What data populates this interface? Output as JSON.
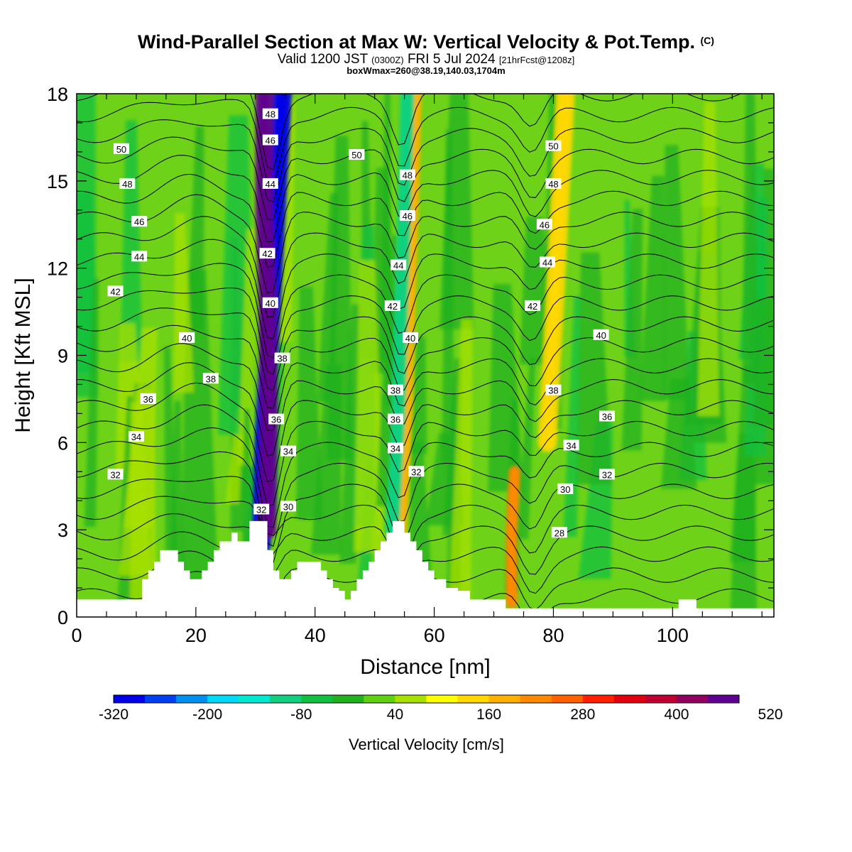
{
  "header": {
    "title": "Wind-Parallel Section at Max W: Vertical Velocity & Pot.Temp.",
    "copyright": "(C)",
    "valid_prefix": "Valid 1200 JST",
    "valid_utc": "(0300Z)",
    "valid_date": "FRI 5 Jul 2024",
    "forecast": "[21hrFcst@1208z]",
    "box_info": "boxWmax=260@38.19,140.03,1704m"
  },
  "chart_data": {
    "type": "heatmap",
    "xlabel": "Distance [nm]",
    "ylabel": "Height [Kft MSL]",
    "xlim": [
      0,
      117
    ],
    "ylim": [
      0,
      18
    ],
    "xticks": [
      "0",
      "20",
      "40",
      "60",
      "80",
      "100"
    ],
    "yticks": [
      "0",
      "3",
      "6",
      "9",
      "12",
      "15",
      "18"
    ],
    "colorbar": {
      "title": "Vertical Velocity [cm/s]",
      "labels": [
        "-320",
        "-200",
        "-80",
        "40",
        "160",
        "280",
        "400",
        "520"
      ],
      "levels": [
        -320,
        -280,
        -240,
        -200,
        -160,
        -120,
        -80,
        -40,
        0,
        40,
        80,
        120,
        160,
        200,
        240,
        280,
        320,
        360,
        400,
        440,
        480,
        520
      ],
      "colors": [
        "#0000e8",
        "#0040f0",
        "#0090f0",
        "#00d8f8",
        "#00e8d0",
        "#10d080",
        "#10c040",
        "#20b020",
        "#60d010",
        "#a8e000",
        "#ffff00",
        "#ffd800",
        "#ffb000",
        "#ff8800",
        "#ff6000",
        "#ff2000",
        "#e00010",
        "#c00030",
        "#900060",
        "#600090"
      ],
      "background_color": "#6ed318"
    },
    "terrain": {
      "x": [
        0,
        11,
        12,
        13,
        14,
        16,
        17,
        18,
        19,
        20,
        21,
        22,
        23,
        24,
        26,
        27,
        29,
        30,
        31,
        32,
        33,
        34,
        35,
        36,
        37,
        38,
        40,
        41,
        42,
        43,
        44,
        45,
        46,
        47,
        48,
        49,
        50,
        51,
        52,
        53,
        54,
        55,
        56,
        57,
        58,
        59,
        60,
        62,
        64,
        66,
        68,
        70,
        72,
        73,
        100,
        101,
        104,
        117
      ],
      "y": [
        0.6,
        1.3,
        1.6,
        1.9,
        2.3,
        2.3,
        1.9,
        1.6,
        1.3,
        1.3,
        1.6,
        1.9,
        2.3,
        2.6,
        2.9,
        2.6,
        3.3,
        3.3,
        3.3,
        2.3,
        1.6,
        1.3,
        1.3,
        1.6,
        1.9,
        1.9,
        1.9,
        1.6,
        1.3,
        1.0,
        0.9,
        0.6,
        0.9,
        1.3,
        1.6,
        1.9,
        2.3,
        2.6,
        2.9,
        3.3,
        3.3,
        2.9,
        2.6,
        2.3,
        1.9,
        1.6,
        1.3,
        1.0,
        0.9,
        0.6,
        0.6,
        0.6,
        0.3,
        0.3,
        0.3,
        0.6,
        0.3,
        0.3
      ]
    },
    "wv_features": [
      {
        "name": "downdraft-core",
        "value": -320,
        "path": [
          [
            31,
            2.5
          ],
          [
            31.5,
            6
          ],
          [
            32.5,
            10
          ],
          [
            33.5,
            14
          ],
          [
            34.5,
            18
          ]
        ],
        "width_nm": 1.6
      },
      {
        "name": "updraft-core",
        "value": 440,
        "path": [
          [
            32,
            3
          ],
          [
            32.3,
            7
          ],
          [
            32,
            11
          ],
          [
            31.5,
            14
          ],
          [
            31.5,
            18
          ]
        ],
        "width_nm": 1.5
      },
      {
        "name": "updraft-band-2",
        "value": 160,
        "path": [
          [
            54,
            3
          ],
          [
            55,
            7
          ],
          [
            55.5,
            11
          ],
          [
            56,
            14
          ],
          [
            56.5,
            18
          ]
        ],
        "width_nm": 1.4
      },
      {
        "name": "downdraft-band-2",
        "value": -120,
        "path": [
          [
            53,
            3
          ],
          [
            54,
            7
          ],
          [
            54.5,
            11
          ],
          [
            55,
            14
          ],
          [
            55.5,
            18
          ]
        ],
        "width_nm": 1.2
      },
      {
        "name": "updraft-band-3",
        "value": 200,
        "path": [
          [
            73,
            0.5
          ],
          [
            73,
            3
          ],
          [
            73.5,
            5
          ]
        ],
        "width_nm": 1.0
      },
      {
        "name": "updraft-band-4",
        "value": 120,
        "path": [
          [
            79,
            6
          ],
          [
            80,
            10
          ],
          [
            81,
            14
          ],
          [
            82,
            18
          ]
        ],
        "width_nm": 1.6
      }
    ],
    "isentrope_labels": [
      {
        "text": "50",
        "x": 7.5,
        "y": 16.1
      },
      {
        "text": "48",
        "x": 8.5,
        "y": 14.9
      },
      {
        "text": "46",
        "x": 10.5,
        "y": 13.6
      },
      {
        "text": "44",
        "x": 10.5,
        "y": 12.4
      },
      {
        "text": "42",
        "x": 6.5,
        "y": 11.2
      },
      {
        "text": "40",
        "x": 18.5,
        "y": 9.6
      },
      {
        "text": "38",
        "x": 22.5,
        "y": 8.2
      },
      {
        "text": "36",
        "x": 12,
        "y": 7.5
      },
      {
        "text": "34",
        "x": 10,
        "y": 6.2
      },
      {
        "text": "32",
        "x": 6.5,
        "y": 4.9
      },
      {
        "text": "48",
        "x": 32.5,
        "y": 17.3
      },
      {
        "text": "46",
        "x": 32.5,
        "y": 16.4
      },
      {
        "text": "44",
        "x": 32.5,
        "y": 14.9
      },
      {
        "text": "42",
        "x": 32,
        "y": 12.5
      },
      {
        "text": "40",
        "x": 32.5,
        "y": 10.8
      },
      {
        "text": "38",
        "x": 34.5,
        "y": 8.9
      },
      {
        "text": "36",
        "x": 33.5,
        "y": 6.8
      },
      {
        "text": "34",
        "x": 35.5,
        "y": 5.7
      },
      {
        "text": "32",
        "x": 31,
        "y": 3.7
      },
      {
        "text": "30",
        "x": 35.5,
        "y": 3.8
      },
      {
        "text": "50",
        "x": 47,
        "y": 15.9
      },
      {
        "text": "48",
        "x": 55.5,
        "y": 15.2
      },
      {
        "text": "46",
        "x": 55.5,
        "y": 13.8
      },
      {
        "text": "44",
        "x": 54,
        "y": 12.1
      },
      {
        "text": "42",
        "x": 53,
        "y": 10.7
      },
      {
        "text": "40",
        "x": 56,
        "y": 9.6
      },
      {
        "text": "38",
        "x": 53.5,
        "y": 7.8
      },
      {
        "text": "36",
        "x": 53.5,
        "y": 6.8
      },
      {
        "text": "34",
        "x": 53.5,
        "y": 5.8
      },
      {
        "text": "32",
        "x": 57,
        "y": 5.0
      },
      {
        "text": "50",
        "x": 80,
        "y": 16.2
      },
      {
        "text": "48",
        "x": 80,
        "y": 14.9
      },
      {
        "text": "46",
        "x": 78.5,
        "y": 13.5
      },
      {
        "text": "44",
        "x": 79,
        "y": 12.2
      },
      {
        "text": "42",
        "x": 76.5,
        "y": 10.7
      },
      {
        "text": "40",
        "x": 88,
        "y": 9.7
      },
      {
        "text": "38",
        "x": 80,
        "y": 7.8
      },
      {
        "text": "36",
        "x": 89,
        "y": 6.9
      },
      {
        "text": "34",
        "x": 83,
        "y": 5.9
      },
      {
        "text": "32",
        "x": 89,
        "y": 4.9
      },
      {
        "text": "30",
        "x": 82,
        "y": 4.4
      },
      {
        "text": "28",
        "x": 81,
        "y": 2.9
      }
    ]
  }
}
